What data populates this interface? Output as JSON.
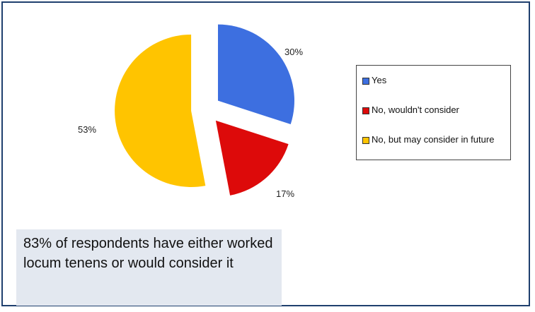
{
  "chart_data": {
    "type": "pie",
    "categories": [
      "Yes",
      "No, wouldn't consider",
      "No, but may consider in future"
    ],
    "values": [
      30,
      17,
      53
    ],
    "labels": [
      "30%",
      "17%",
      "53%"
    ],
    "colors": [
      "#3d6fe0",
      "#dd0a0a",
      "#ffc400"
    ],
    "exploded": true,
    "legend_position": "right"
  },
  "legend": {
    "items": [
      {
        "label": "Yes",
        "color": "#3d6fe0"
      },
      {
        "label": "No, wouldn't consider",
        "color": "#dd0a0a"
      },
      {
        "label": "No, but may consider in future",
        "color": "#ffc400"
      }
    ]
  },
  "caption": {
    "text": "83% of respondents have either worked locum tenens or would consider it"
  }
}
